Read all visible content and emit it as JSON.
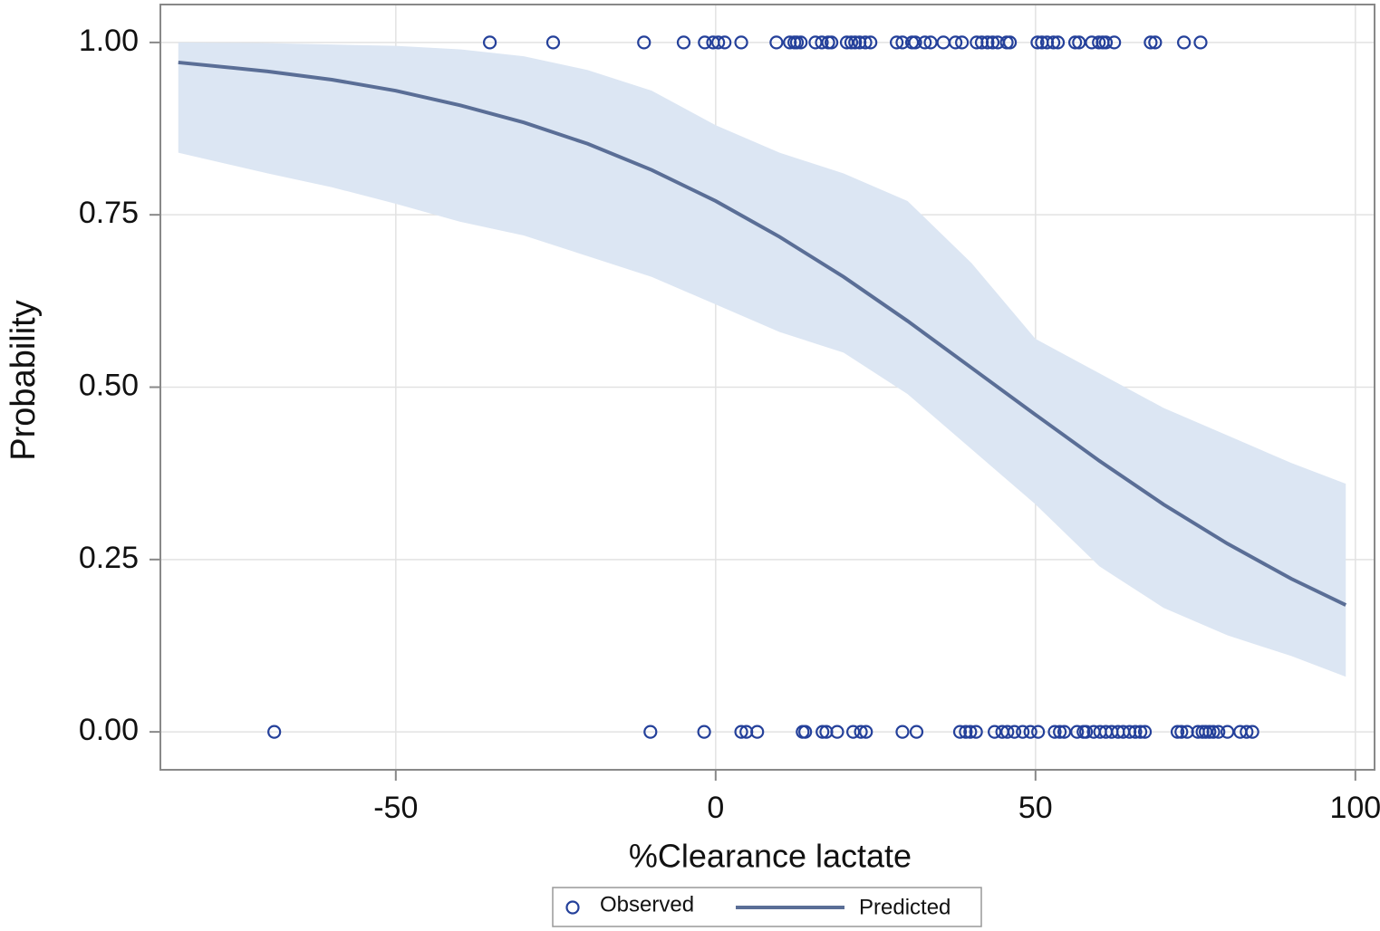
{
  "chart_data": {
    "type": "logistic",
    "x_label": "%Clearance lactate",
    "y_label": "Probability",
    "xlim": [
      -86.8,
      103
    ],
    "ylim": [
      -0.055,
      1.055
    ],
    "xticks": [
      -50,
      0,
      50,
      100
    ],
    "yticks": [
      {
        "value": 0,
        "label": "0.00"
      },
      {
        "value": 0.25,
        "label": "0.25"
      },
      {
        "value": 0.5,
        "label": "0.50"
      },
      {
        "value": 0.75,
        "label": "0.75"
      },
      {
        "value": 1,
        "label": "1.00"
      }
    ],
    "grid": true,
    "legend": "bottom",
    "series": [
      {
        "name": "Observed",
        "type": "scatter",
        "color": "#24409a",
        "x": [
          -35.3,
          -25.4,
          -11.2,
          -5.0,
          -1.7,
          -0.4,
          0.4,
          1.4,
          4.0,
          9.5,
          11.6,
          12.3,
          12.7,
          13.3,
          15.6,
          16.6,
          17.6,
          18.1,
          20.5,
          21.2,
          21.8,
          22.5,
          23.4,
          24.2,
          28.3,
          29.2,
          30.7,
          31.2,
          32.7,
          33.6,
          35.6,
          37.5,
          38.5,
          40.8,
          41.6,
          42.5,
          43.3,
          44.1,
          45.5,
          46.0,
          50.3,
          51.0,
          51.8,
          52.8,
          53.5,
          56.2,
          56.8,
          58.8,
          59.9,
          60.5,
          61.0,
          62.3,
          68.0,
          68.7,
          73.2,
          75.8,
          -69.0,
          -10.2,
          -1.8,
          4.0,
          4.8,
          6.5,
          13.6,
          14.0,
          16.7,
          17.3,
          19.0,
          21.5,
          22.7,
          23.5,
          29.2,
          31.4,
          38.2,
          39.1,
          39.8,
          40.7,
          43.6,
          44.8,
          45.6,
          46.7,
          48.0,
          49.2,
          50.4,
          53.0,
          53.8,
          54.5,
          56.5,
          57.5,
          57.9,
          59.1,
          60.1,
          61.0,
          61.9,
          62.9,
          63.7,
          64.7,
          65.6,
          66.4,
          67.1,
          72.2,
          72.8,
          73.7,
          75.4,
          76.1,
          76.6,
          77.2,
          77.8,
          78.6,
          80.0,
          82.0,
          83.0,
          83.9
        ],
        "values": [
          1,
          1,
          1,
          1,
          1,
          1,
          1,
          1,
          1,
          1,
          1,
          1,
          1,
          1,
          1,
          1,
          1,
          1,
          1,
          1,
          1,
          1,
          1,
          1,
          1,
          1,
          1,
          1,
          1,
          1,
          1,
          1,
          1,
          1,
          1,
          1,
          1,
          1,
          1,
          1,
          1,
          1,
          1,
          1,
          1,
          1,
          1,
          1,
          1,
          1,
          1,
          1,
          1,
          1,
          1,
          1,
          0,
          0,
          0,
          0,
          0,
          0,
          0,
          0,
          0,
          0,
          0,
          0,
          0,
          0,
          0,
          0,
          0,
          0,
          0,
          0,
          0,
          0,
          0,
          0,
          0,
          0,
          0,
          0,
          0,
          0,
          0,
          0,
          0,
          0,
          0,
          0,
          0,
          0,
          0,
          0,
          0,
          0,
          0,
          0,
          0,
          0,
          0,
          0,
          0,
          0,
          0,
          0,
          0,
          0,
          0,
          0
        ]
      },
      {
        "name": "Predicted",
        "type": "line",
        "color": "#5a6e96",
        "band_color": "#dce6f3",
        "x": [
          -84,
          -70,
          -60,
          -50,
          -40,
          -30,
          -20,
          -10,
          0,
          10,
          20,
          30,
          40,
          50,
          60,
          70,
          80,
          90,
          98.5
        ],
        "values": [
          0.971,
          0.958,
          0.946,
          0.93,
          0.909,
          0.884,
          0.853,
          0.815,
          0.77,
          0.718,
          0.66,
          0.596,
          0.528,
          0.46,
          0.393,
          0.33,
          0.273,
          0.222,
          0.184
        ],
        "lower": [
          0.84,
          0.81,
          0.79,
          0.766,
          0.74,
          0.72,
          0.69,
          0.66,
          0.62,
          0.58,
          0.55,
          0.49,
          0.41,
          0.33,
          0.24,
          0.18,
          0.14,
          0.11,
          0.08
        ],
        "upper": [
          1.0,
          0.999,
          0.997,
          0.995,
          0.99,
          0.98,
          0.96,
          0.93,
          0.88,
          0.84,
          0.81,
          0.77,
          0.68,
          0.57,
          0.52,
          0.47,
          0.43,
          0.39,
          0.36
        ]
      }
    ]
  }
}
